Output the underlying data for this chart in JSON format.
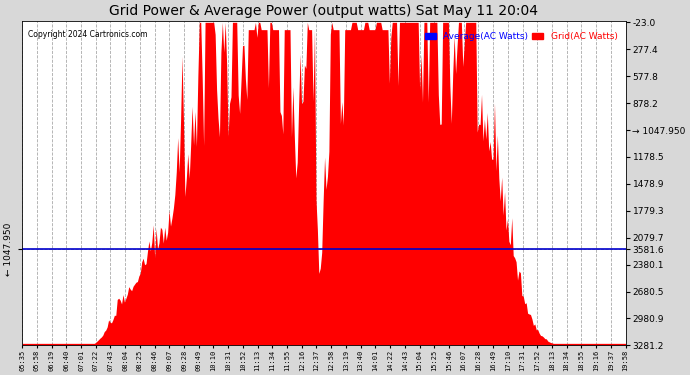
{
  "title": "Grid Power & Average Power (output watts) Sat May 11 20:04",
  "copyright": "Copyright 2024 Cartronics.com",
  "legend_avg": "Average(AC Watts)",
  "legend_grid": "Grid(AC Watts)",
  "ylabel_left": "← 1047.950",
  "ylabel_right": "→ 1047.950",
  "ymin": -23.0,
  "ymax": 3581.6,
  "yticks_right": [
    3581.6,
    3281.2,
    2980.9,
    2680.5,
    2380.1,
    2079.7,
    1779.3,
    1478.9,
    1178.5,
    878.2,
    577.8,
    277.4,
    -23.0
  ],
  "hline_y": 1047.95,
  "plot_bg_color": "#ffffff",
  "figure_bg_color": "#d8d8d8",
  "grid_color": "#aaaaaa",
  "fill_color": "#ff0000",
  "hline_color": "#0000cc",
  "title_color": "#000000",
  "copyright_color": "#000000",
  "legend_avg_color": "#0000ff",
  "legend_grid_color": "#ff0000",
  "xtick_labels": [
    "05:35",
    "05:58",
    "06:19",
    "06:40",
    "07:01",
    "07:22",
    "07:43",
    "08:04",
    "08:25",
    "08:46",
    "09:07",
    "09:28",
    "09:49",
    "10:10",
    "10:31",
    "10:52",
    "11:13",
    "11:34",
    "11:55",
    "12:16",
    "12:37",
    "12:58",
    "13:19",
    "13:40",
    "14:01",
    "14:22",
    "14:43",
    "15:04",
    "15:25",
    "15:46",
    "16:07",
    "16:28",
    "16:49",
    "17:10",
    "17:31",
    "17:52",
    "18:13",
    "18:34",
    "18:55",
    "19:16",
    "19:37",
    "19:58"
  ]
}
